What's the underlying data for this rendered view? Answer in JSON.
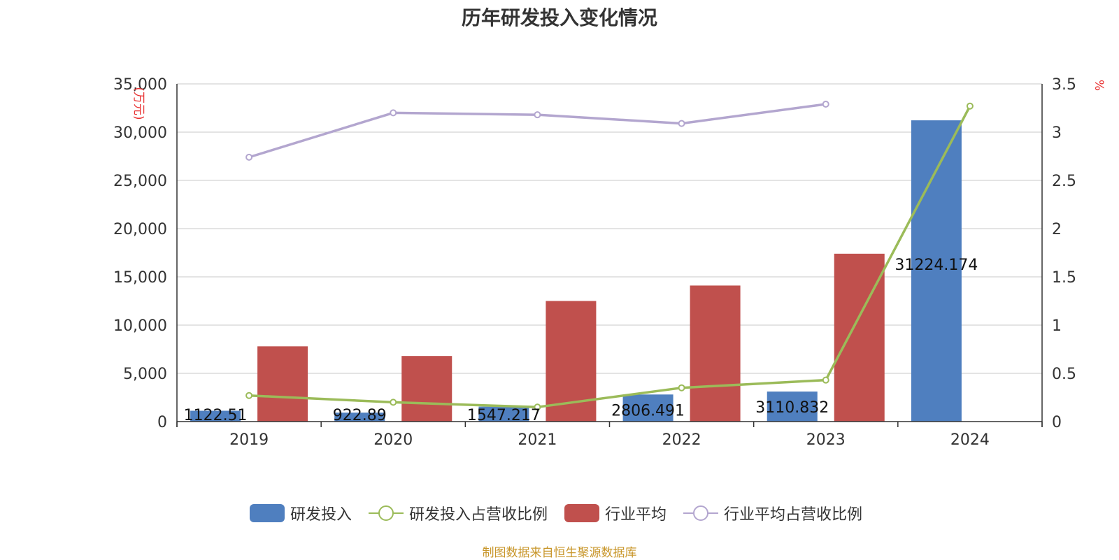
{
  "title": "历年研发投入变化情况",
  "source": "制图数据来自恒生聚源数据库",
  "legend": {
    "rd": "研发投入",
    "rd_ratio": "研发投入占营收比例",
    "ind": "行业平均",
    "ind_ratio": "行业平均占营收比例"
  },
  "colors": {
    "rd": "#4f7fbf",
    "ind": "#c0504d",
    "rd_ratio": "#9bbb59",
    "ind_ratio": "#b3a6cf",
    "grid": "#c8c8c8",
    "axis": "#333333",
    "unit": "#e83030"
  },
  "chart_data": {
    "type": "bar",
    "categories": [
      "2019",
      "2020",
      "2021",
      "2022",
      "2023",
      "2024"
    ],
    "y_left": {
      "label": "(万元)",
      "min": 0,
      "max": 35000,
      "ticks": [
        "0",
        "5,000",
        "10,000",
        "15,000",
        "20,000",
        "25,000",
        "30,000",
        "35,000"
      ],
      "tick_values": [
        0,
        5000,
        10000,
        15000,
        20000,
        25000,
        30000,
        35000
      ]
    },
    "y_right": {
      "label": "%",
      "min": 0,
      "max": 3.5,
      "ticks": [
        "0",
        "0.5",
        "1",
        "1.5",
        "2",
        "2.5",
        "3",
        "3.5"
      ],
      "tick_values": [
        0,
        0.5,
        1,
        1.5,
        2,
        2.5,
        3,
        3.5
      ]
    },
    "grid": true,
    "legend_position": "bottom",
    "series": [
      {
        "name": "研发投入",
        "type": "bar",
        "axis": "left",
        "values": [
          1122.51,
          922.89,
          1547.217,
          2806.491,
          3110.832,
          31224.174
        ],
        "labels": [
          "1122.51",
          "922.89",
          "1547.217",
          "2806.491",
          "3110.832",
          "31224.174"
        ]
      },
      {
        "name": "行业平均",
        "type": "bar",
        "axis": "left",
        "values": [
          7800,
          6800,
          12500,
          14100,
          17400,
          null
        ]
      },
      {
        "name": "研发投入占营收比例",
        "type": "line",
        "axis": "right",
        "values": [
          0.27,
          0.2,
          0.15,
          0.35,
          0.43,
          3.27
        ]
      },
      {
        "name": "行业平均占营收比例",
        "type": "line",
        "axis": "right",
        "values": [
          2.74,
          3.2,
          3.18,
          3.09,
          3.29,
          null
        ]
      }
    ]
  }
}
